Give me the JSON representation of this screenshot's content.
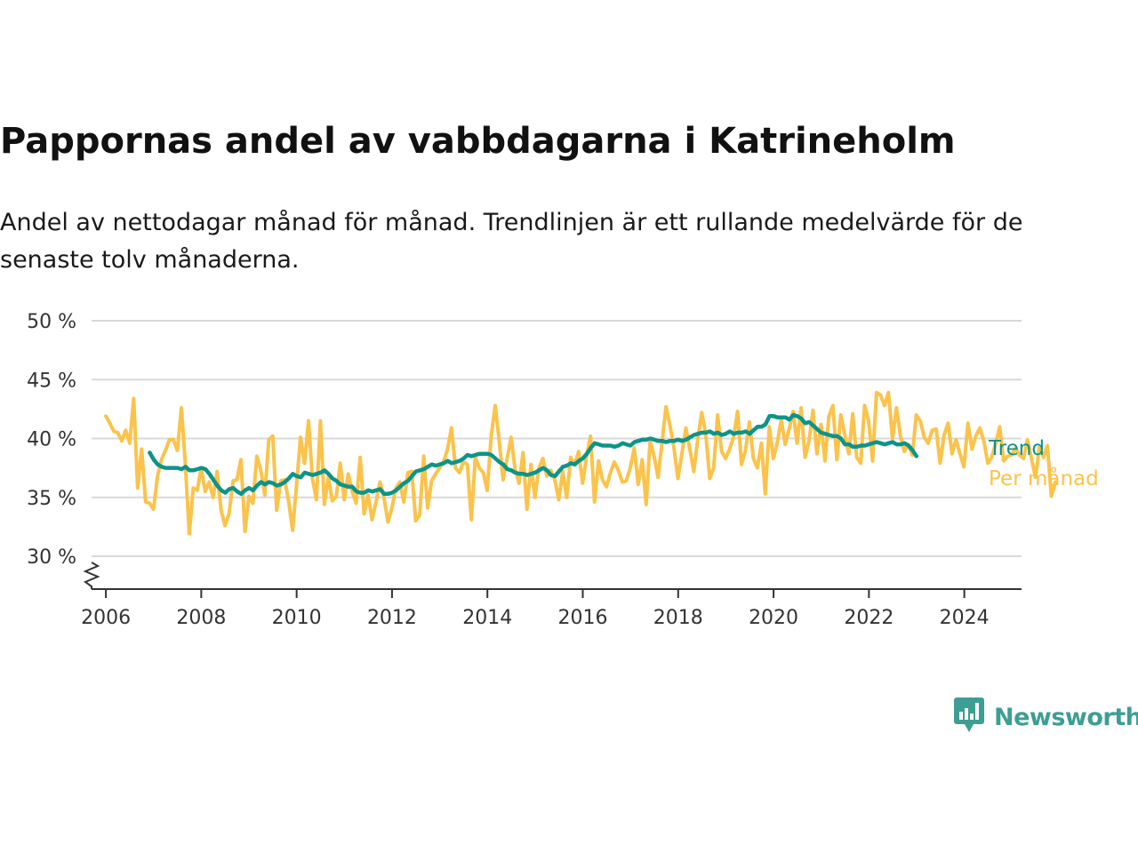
{
  "title": "Pappornas andel av vabbdagarna i Katrineholm",
  "subtitle": "Andel av nettodagar månad för månad. Trendlinjen är ett rullande medelvärde för de senaste tolv månaderna.",
  "brand": {
    "name": "Newsworthy",
    "icon": "bar-chart-speech-bubble-icon",
    "color": "#3d9e93"
  },
  "colors": {
    "trend": "#0d9488",
    "monthly": "#fbc34b",
    "grid": "#d9d9d9",
    "axis": "#333333"
  },
  "chart_data": {
    "type": "line",
    "xlabel": "",
    "ylabel": "",
    "xlim": [
      2005.7,
      2025.2
    ],
    "ylim": [
      28,
      50
    ],
    "y_ticks": [
      30,
      35,
      40,
      45,
      50
    ],
    "y_tick_labels": [
      "30 %",
      "35 %",
      "40 %",
      "45 %",
      "50 %"
    ],
    "x_ticks": [
      2006,
      2008,
      2010,
      2012,
      2014,
      2016,
      2018,
      2020,
      2022,
      2024
    ],
    "x_tick_labels": [
      "2006",
      "2008",
      "2010",
      "2012",
      "2014",
      "2016",
      "2018",
      "2020",
      "2022",
      "2024"
    ],
    "y_axis_break": true,
    "grid": "horizontal",
    "legend": "direct labels at right end of lines",
    "series": [
      {
        "name": "Trend",
        "start": 2006.92,
        "step": 0.0833,
        "values": [
          38.8,
          38.2,
          37.8,
          37.6,
          37.5,
          37.5,
          37.5,
          37.5,
          37.4,
          37.6,
          37.3,
          37.3,
          37.4,
          37.5,
          37.4,
          37.0,
          36.5,
          36.0,
          35.6,
          35.4,
          35.7,
          35.8,
          35.5,
          35.3,
          35.6,
          35.8,
          35.6,
          36.0,
          36.3,
          36.1,
          36.3,
          36.2,
          36.0,
          36.1,
          36.3,
          36.6,
          37.0,
          36.8,
          36.7,
          37.1,
          37.0,
          36.9,
          37.0,
          37.1,
          37.3,
          37.0,
          36.6,
          36.4,
          36.1,
          36.0,
          35.9,
          35.9,
          35.5,
          35.4,
          35.4,
          35.6,
          35.5,
          35.6,
          35.7,
          35.3,
          35.3,
          35.4,
          35.6,
          35.9,
          36.2,
          36.4,
          36.8,
          37.2,
          37.3,
          37.4,
          37.6,
          37.8,
          37.7,
          37.8,
          37.9,
          38.1,
          37.9,
          38.0,
          38.1,
          38.3,
          38.6,
          38.5,
          38.6,
          38.7,
          38.7,
          38.7,
          38.6,
          38.3,
          38.0,
          37.8,
          37.4,
          37.3,
          37.1,
          37.0,
          37.0,
          36.9,
          37.0,
          37.1,
          37.3,
          37.5,
          37.3,
          36.9,
          36.8,
          37.2,
          37.6,
          37.7,
          37.9,
          37.8,
          38.1,
          38.3,
          38.7,
          39.2,
          39.6,
          39.5,
          39.4,
          39.4,
          39.4,
          39.3,
          39.4,
          39.6,
          39.5,
          39.4,
          39.7,
          39.8,
          39.9,
          39.9,
          40.0,
          39.9,
          39.8,
          39.8,
          39.7,
          39.8,
          39.8,
          39.9,
          39.8,
          39.9,
          40.1,
          40.3,
          40.4,
          40.5,
          40.5,
          40.6,
          40.4,
          40.5,
          40.3,
          40.4,
          40.6,
          40.4,
          40.5,
          40.5,
          40.6,
          40.4,
          40.7,
          41.0,
          41.0,
          41.2,
          41.9,
          41.9,
          41.8,
          41.8,
          41.8,
          41.6,
          42.0,
          41.9,
          41.7,
          41.3,
          41.4,
          41.1,
          40.8,
          40.5,
          40.4,
          40.3,
          40.2,
          40.2,
          40.0,
          39.5,
          39.5,
          39.3,
          39.3,
          39.4,
          39.4,
          39.5,
          39.6,
          39.7,
          39.6,
          39.5,
          39.6,
          39.7,
          39.5,
          39.5,
          39.6,
          39.4,
          39.0,
          38.5
        ]
      },
      {
        "name": "Per månad",
        "start": 2006.0,
        "step": 0.0833,
        "values": [
          41.9,
          41.3,
          40.6,
          40.5,
          39.8,
          40.7,
          39.6,
          43.4,
          35.8,
          39.1,
          34.6,
          34.5,
          34.0,
          36.8,
          38.2,
          39.0,
          39.9,
          39.9,
          39.0,
          42.6,
          37.8,
          31.9,
          35.8,
          35.6,
          37.5,
          35.5,
          36.3,
          35.0,
          37.2,
          33.9,
          32.6,
          33.6,
          36.4,
          36.5,
          38.2,
          32.1,
          35.1,
          34.5,
          38.5,
          37.3,
          35.2,
          39.9,
          40.2,
          33.9,
          36.4,
          36.5,
          34.7,
          32.2,
          36.1,
          40.1,
          37.9,
          41.5,
          36.6,
          34.8,
          41.5,
          34.4,
          36.7,
          34.7,
          35.1,
          37.9,
          34.8,
          37.0,
          35.5,
          34.5,
          38.4,
          33.6,
          35.2,
          33.1,
          34.6,
          36.3,
          35.0,
          32.9,
          34.1,
          35.8,
          36.3,
          34.6,
          37.1,
          37.2,
          33.0,
          33.5,
          38.5,
          34.1,
          36.4,
          37.0,
          37.5,
          38.0,
          39.1,
          40.9,
          37.5,
          37.1,
          38.0,
          37.8,
          33.1,
          38.4,
          37.5,
          37.1,
          35.6,
          40.2,
          42.8,
          39.8,
          36.5,
          38.3,
          40.1,
          37.4,
          36.2,
          38.8,
          34.0,
          37.8,
          35.0,
          37.5,
          38.3,
          36.8,
          37.3,
          36.5,
          34.8,
          37.2,
          35.0,
          38.4,
          37.8,
          38.9,
          36.2,
          38.5,
          40.2,
          34.6,
          38.1,
          36.5,
          35.9,
          37.1,
          38.0,
          37.3,
          36.3,
          36.4,
          37.5,
          39.2,
          36.1,
          38.2,
          34.4,
          39.8,
          38.5,
          36.7,
          39.7,
          42.7,
          41.1,
          39.2,
          36.6,
          38.7,
          40.9,
          39.1,
          37.2,
          40.0,
          42.2,
          40.4,
          36.6,
          37.5,
          42.0,
          38.9,
          38.3,
          39.1,
          40.1,
          42.3,
          37.8,
          39.0,
          41.4,
          38.3,
          37.5,
          39.6,
          35.3,
          41.0,
          38.3,
          39.6,
          41.6,
          39.5,
          40.8,
          42.3,
          39.6,
          42.6,
          38.4,
          39.8,
          42.4,
          38.7,
          41.2,
          38.1,
          41.9,
          42.8,
          38.2,
          42.0,
          40.3,
          38.7,
          42.1,
          38.4,
          37.9,
          42.8,
          41.5,
          38.1,
          43.9,
          43.7,
          42.8,
          43.9,
          40.0,
          42.6,
          40.2,
          38.9,
          39.5,
          38.6,
          42.0,
          41.5,
          40.1,
          39.6,
          40.7,
          40.8,
          37.9,
          40.3,
          41.3,
          38.7,
          39.9,
          38.7,
          37.6,
          41.3,
          39.1,
          40.2,
          40.9,
          39.8,
          37.9,
          38.4,
          39.6,
          41.0,
          38.1,
          38.5,
          38.6,
          39.2,
          38.6,
          38.3,
          39.9,
          38.3,
          36.7,
          39.3,
          38.4,
          39.4,
          35.1,
          36.3
        ]
      }
    ]
  }
}
